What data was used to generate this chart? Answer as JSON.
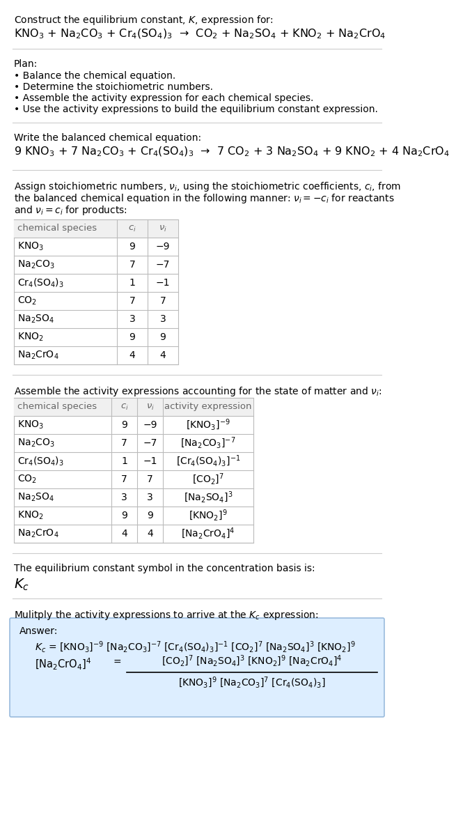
{
  "bg_color": "#ffffff",
  "line_color": "#cccccc",
  "table_border": "#bbbbbb",
  "answer_box_bg": "#ddeeff",
  "answer_box_border": "#99bbdd",
  "gray_text": "#555555",
  "title_line1": "Construct the equilibrium constant, $K$, expression for:",
  "reaction_unbalanced": "KNO$_3$ + Na$_2$CO$_3$ + Cr$_4$(SO$_4$)$_3$  →  CO$_2$ + Na$_2$SO$_4$ + KNO$_2$ + Na$_2$CrO$_4$",
  "plan_header": "Plan:",
  "plan_items": [
    "• Balance the chemical equation.",
    "• Determine the stoichiometric numbers.",
    "• Assemble the activity expression for each chemical species.",
    "• Use the activity expressions to build the equilibrium constant expression."
  ],
  "balanced_header": "Write the balanced chemical equation:",
  "balanced_eq": "9 KNO$_3$ + 7 Na$_2$CO$_3$ + Cr$_4$(SO$_4$)$_3$  →  7 CO$_2$ + 3 Na$_2$SO$_4$ + 9 KNO$_2$ + 4 Na$_2$CrO$_4$",
  "stoich_intro": "Assign stoichiometric numbers, $\\nu_i$, using the stoichiometric coefficients, $c_i$, from\nthe balanced chemical equation in the following manner: $\\nu_i = -c_i$ for reactants\nand $\\nu_i = c_i$ for products:",
  "table1_col_headers": [
    "chemical species",
    "$c_i$",
    "$\\nu_i$"
  ],
  "table1_rows": [
    [
      "KNO$_3$",
      "9",
      "−9"
    ],
    [
      "Na$_2$CO$_3$",
      "7",
      "−7"
    ],
    [
      "Cr$_4$(SO$_4$)$_3$",
      "1",
      "−1"
    ],
    [
      "CO$_2$",
      "7",
      "7"
    ],
    [
      "Na$_2$SO$_4$",
      "3",
      "3"
    ],
    [
      "KNO$_2$",
      "9",
      "9"
    ],
    [
      "Na$_2$CrO$_4$",
      "4",
      "4"
    ]
  ],
  "activity_intro": "Assemble the activity expressions accounting for the state of matter and $\\nu_i$:",
  "table2_col_headers": [
    "chemical species",
    "$c_i$",
    "$\\nu_i$",
    "activity expression"
  ],
  "table2_rows": [
    [
      "KNO$_3$",
      "9",
      "−9",
      "[KNO$_3$]$^{-9}$"
    ],
    [
      "Na$_2$CO$_3$",
      "7",
      "−7",
      "[Na$_2$CO$_3$]$^{-7}$"
    ],
    [
      "Cr$_4$(SO$_4$)$_3$",
      "1",
      "−1",
      "[Cr$_4$(SO$_4$)$_3$]$^{-1}$"
    ],
    [
      "CO$_2$",
      "7",
      "7",
      "[CO$_2$]$^7$"
    ],
    [
      "Na$_2$SO$_4$",
      "3",
      "3",
      "[Na$_2$SO$_4$]$^3$"
    ],
    [
      "KNO$_2$",
      "9",
      "9",
      "[KNO$_2$]$^9$"
    ],
    [
      "Na$_2$CrO$_4$",
      "4",
      "4",
      "[Na$_2$CrO$_4$]$^4$"
    ]
  ],
  "kc_intro": "The equilibrium constant symbol in the concentration basis is:",
  "kc_symbol": "$K_c$",
  "multiply_intro": "Mulitply the activity expressions to arrive at the $K_c$ expression:",
  "answer_label": "Answer:",
  "ans_kc_line": "$K_c$ = [KNO$_3$]$^{-9}$ [Na$_2$CO$_3$]$^{-7}$ [Cr$_4$(SO$_4$)$_3$]$^{-1}$ [CO$_2$]$^7$ [Na$_2$SO$_4$]$^3$ [KNO$_2$]$^9$",
  "ans_nacro_line": "[Na$_2$CrO$_4$]$^4$",
  "ans_equals": "=",
  "ans_num": "[CO$_2$]$^7$ [Na$_2$SO$_4$]$^3$ [KNO$_2$]$^9$ [Na$_2$CrO$_4$]$^4$",
  "ans_den": "[KNO$_3$]$^9$ [Na$_2$CO$_3$]$^7$ [Cr$_4$(SO$_4$)$_3$]"
}
